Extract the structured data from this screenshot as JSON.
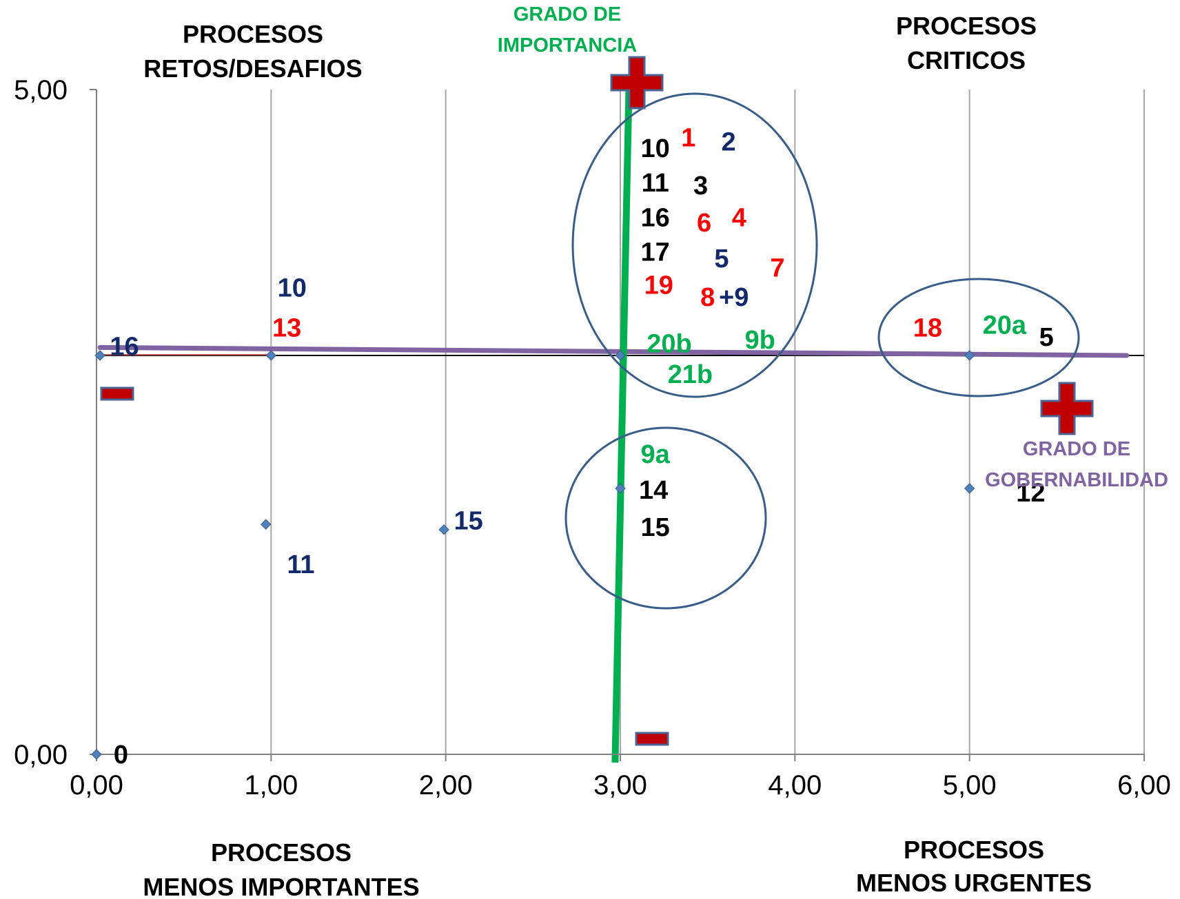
{
  "colors": {
    "navy": "#12296b",
    "red": "#ff0000",
    "green": "#00b050",
    "black": "#000000",
    "purple": "#8064a2",
    "point": "#4f81bd",
    "circle": "#385d8a",
    "sign_fill": "#c00000",
    "sign_stroke": "#4a6494"
  },
  "quadrant_labels": {
    "top_left_1": "PROCESOS",
    "top_left_2": "RETOS/DESAFIOS",
    "top_right_1": "PROCESOS",
    "top_right_2": "CRITICOS",
    "bottom_left_1": "PROCESOS",
    "bottom_left_2": "MENOS IMPORTANTES",
    "bottom_right_1": "PROCESOS",
    "bottom_right_2": "MENOS URGENTES"
  },
  "axis_titles": {
    "importance_1": "GRADO DE",
    "importance_2": "IMPORTANCIA",
    "governability_1": "GRADO DE",
    "governability_2": "GOBERNABILIDAD"
  },
  "chart_data": {
    "type": "scatter",
    "xlim": [
      0,
      6
    ],
    "ylim": [
      0,
      5
    ],
    "x_ticks": [
      "0,00",
      "1,00",
      "2,00",
      "3,00",
      "4,00",
      "5,00",
      "6,00"
    ],
    "y_ticks": [
      "0,00",
      "5,00"
    ],
    "grid": "vertical",
    "points": [
      {
        "x": 0,
        "y": 0
      },
      {
        "x": 0.02,
        "y": 3.0
      },
      {
        "x": 1.0,
        "y": 3.0
      },
      {
        "x": 0.97,
        "y": 1.73
      },
      {
        "x": 1.99,
        "y": 1.69
      },
      {
        "x": 3.0,
        "y": 3.0
      },
      {
        "x": 3.0,
        "y": 2.0
      },
      {
        "x": 5.0,
        "y": 3.0
      },
      {
        "x": 5.0,
        "y": 2.0
      }
    ],
    "reference_lines": {
      "horizontal_y": 3.0,
      "governability_line": [
        [
          0.02,
          3.06
        ],
        [
          5.9,
          3.0
        ]
      ],
      "importance_line": [
        [
          2.97,
          0
        ],
        [
          3.05,
          5.0
        ]
      ]
    },
    "annotations": [
      {
        "text": "0",
        "x": 0.14,
        "y": 0.0,
        "color": "black"
      },
      {
        "text": "16",
        "x": 0.16,
        "y": 3.07,
        "color": "navy"
      },
      {
        "text": "10",
        "x": 1.12,
        "y": 3.51,
        "color": "navy"
      },
      {
        "text": "13",
        "x": 1.09,
        "y": 3.21,
        "color": "red"
      },
      {
        "text": "11",
        "x": 1.17,
        "y": 1.43,
        "color": "navy"
      },
      {
        "text": "15",
        "x": 2.13,
        "y": 1.76,
        "color": "navy"
      },
      {
        "text": "10",
        "x": 3.2,
        "y": 4.56,
        "color": "black"
      },
      {
        "text": "1",
        "x": 3.39,
        "y": 4.64,
        "color": "red"
      },
      {
        "text": "2",
        "x": 3.62,
        "y": 4.61,
        "color": "navy"
      },
      {
        "text": "11",
        "x": 3.2,
        "y": 4.3,
        "color": "black"
      },
      {
        "text": "3",
        "x": 3.46,
        "y": 4.28,
        "color": "black"
      },
      {
        "text": "16",
        "x": 3.2,
        "y": 4.04,
        "color": "black"
      },
      {
        "text": "6",
        "x": 3.48,
        "y": 4.0,
        "color": "red"
      },
      {
        "text": "4",
        "x": 3.68,
        "y": 4.04,
        "color": "red"
      },
      {
        "text": "17",
        "x": 3.2,
        "y": 3.78,
        "color": "black"
      },
      {
        "text": "5",
        "x": 3.58,
        "y": 3.73,
        "color": "navy"
      },
      {
        "text": "7",
        "x": 3.9,
        "y": 3.66,
        "color": "red"
      },
      {
        "text": "19",
        "x": 3.22,
        "y": 3.53,
        "color": "red"
      },
      {
        "text": "8",
        "x": 3.5,
        "y": 3.44,
        "color": "red"
      },
      {
        "text": "+9",
        "x": 3.65,
        "y": 3.44,
        "color": "navy"
      },
      {
        "text": "20b",
        "x": 3.28,
        "y": 3.09,
        "color": "green"
      },
      {
        "text": "9b",
        "x": 3.8,
        "y": 3.12,
        "color": "green"
      },
      {
        "text": "21b",
        "x": 3.4,
        "y": 2.86,
        "color": "green"
      },
      {
        "text": "18",
        "x": 4.76,
        "y": 3.21,
        "color": "red"
      },
      {
        "text": "20a",
        "x": 5.2,
        "y": 3.23,
        "color": "green"
      },
      {
        "text": "5",
        "x": 5.44,
        "y": 3.14,
        "color": "black"
      },
      {
        "text": "9a",
        "x": 3.2,
        "y": 2.26,
        "color": "green"
      },
      {
        "text": "14",
        "x": 3.19,
        "y": 1.99,
        "color": "black"
      },
      {
        "text": "15",
        "x": 3.2,
        "y": 1.71,
        "color": "black"
      },
      {
        "text": "12",
        "x": 5.35,
        "y": 1.97,
        "color": "black"
      }
    ]
  }
}
